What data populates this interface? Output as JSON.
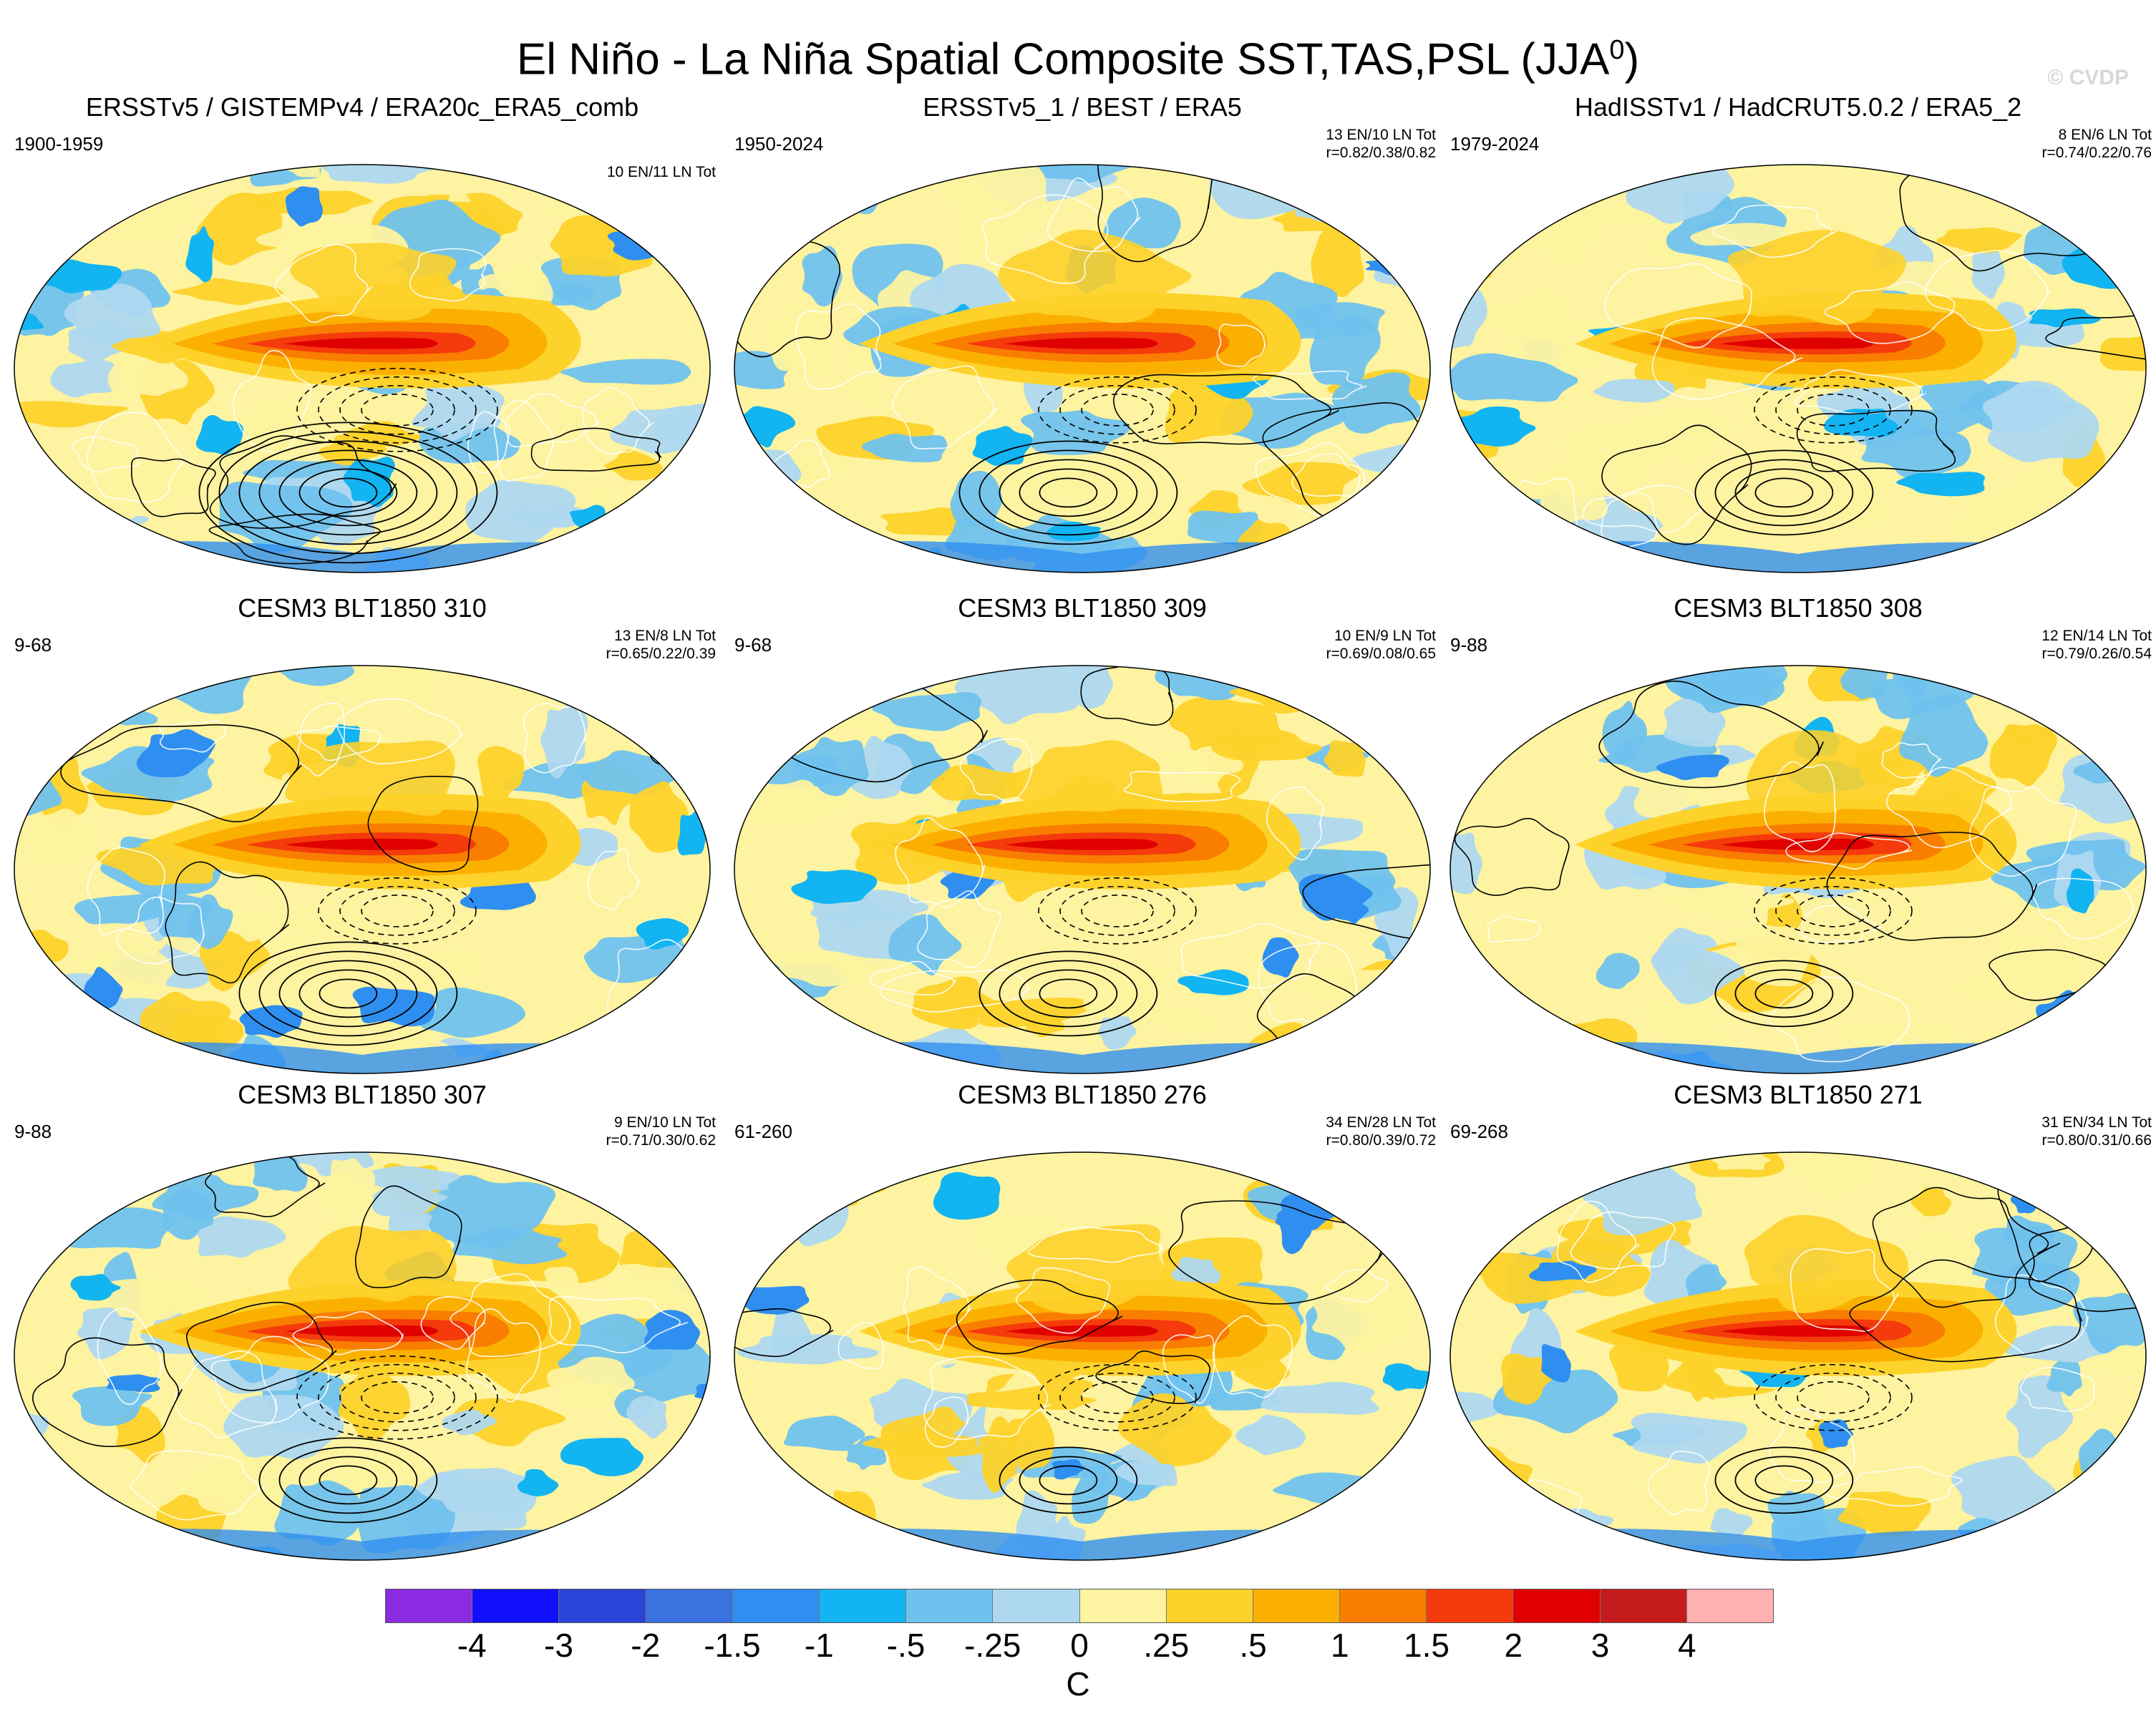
{
  "figure": {
    "title_main": "El Niño - La Niña Spatial Composite SST,TAS,PSL (JJA",
    "title_sup": "0",
    "title_close": ")",
    "watermark": "© CVDP"
  },
  "panels": [
    {
      "title": "ERSSTv5 / GISTEMPv4 / ERA20c_ERA5_comb",
      "years": "1900-1959",
      "events": "10 EN/11 LN Tot",
      "corr": "",
      "seed": 3,
      "highs": 7,
      "lows": 4
    },
    {
      "title": "ERSSTv5_1 / BEST / ERA5",
      "years": "1950-2024",
      "events": "13 EN/10 LN Tot",
      "corr": "r=0.82/0.38/0.82",
      "seed": 11,
      "highs": 5,
      "lows": 3
    },
    {
      "title": "HadISSTv1 / HadCRUT5.0.2 / ERA5_2",
      "years": "1979-2024",
      "events": "8 EN/6 LN Tot",
      "corr": "r=0.74/0.22/0.76",
      "seed": 19,
      "highs": 4,
      "lows": 3
    },
    {
      "title": "CESM3 BLT1850 310",
      "years": "9-68",
      "events": "13 EN/8 LN Tot",
      "corr": "r=0.65/0.22/0.39",
      "seed": 27,
      "highs": 5,
      "lows": 3
    },
    {
      "title": "CESM3 BLT1850 309",
      "years": "9-68",
      "events": "10 EN/9 LN Tot",
      "corr": "r=0.69/0.08/0.65",
      "seed": 35,
      "highs": 4,
      "lows": 3
    },
    {
      "title": "CESM3 BLT1850 308",
      "years": "9-88",
      "events": "12 EN/14 LN Tot",
      "corr": "r=0.79/0.26/0.54",
      "seed": 43,
      "highs": 3,
      "lows": 3
    },
    {
      "title": "CESM3 BLT1850 307",
      "years": "9-88",
      "events": "9 EN/10 LN Tot",
      "corr": "r=0.71/0.30/0.62",
      "seed": 51,
      "highs": 4,
      "lows": 4
    },
    {
      "title": "CESM3 BLT1850 276",
      "years": "61-260",
      "events": "34 EN/28 LN Tot",
      "corr": "r=0.80/0.39/0.72",
      "seed": 59,
      "highs": 3,
      "lows": 3
    },
    {
      "title": "CESM3 BLT1850 271",
      "years": "69-268",
      "events": "31 EN/34 LN Tot",
      "corr": "r=0.80/0.31/0.66",
      "seed": 67,
      "highs": 3,
      "lows": 3
    }
  ],
  "colorbar": {
    "levels": [
      "-4",
      "-3",
      "-2",
      "-1.5",
      "-1",
      "-.5",
      "-.25",
      "0",
      ".25",
      ".5",
      "1",
      "1.5",
      "2",
      "3",
      "4"
    ],
    "colors": [
      "#8a2be2",
      "#1010ff",
      "#2b44d8",
      "#3a72e0",
      "#2f8ff0",
      "#12b4f2",
      "#70c2ee",
      "#aed8f0",
      "#fdf3a0",
      "#fdd22a",
      "#fbb000",
      "#f97e00",
      "#f53a0c",
      "#e00000",
      "#c41c1c",
      "#ffb0b0"
    ],
    "units": "C"
  }
}
